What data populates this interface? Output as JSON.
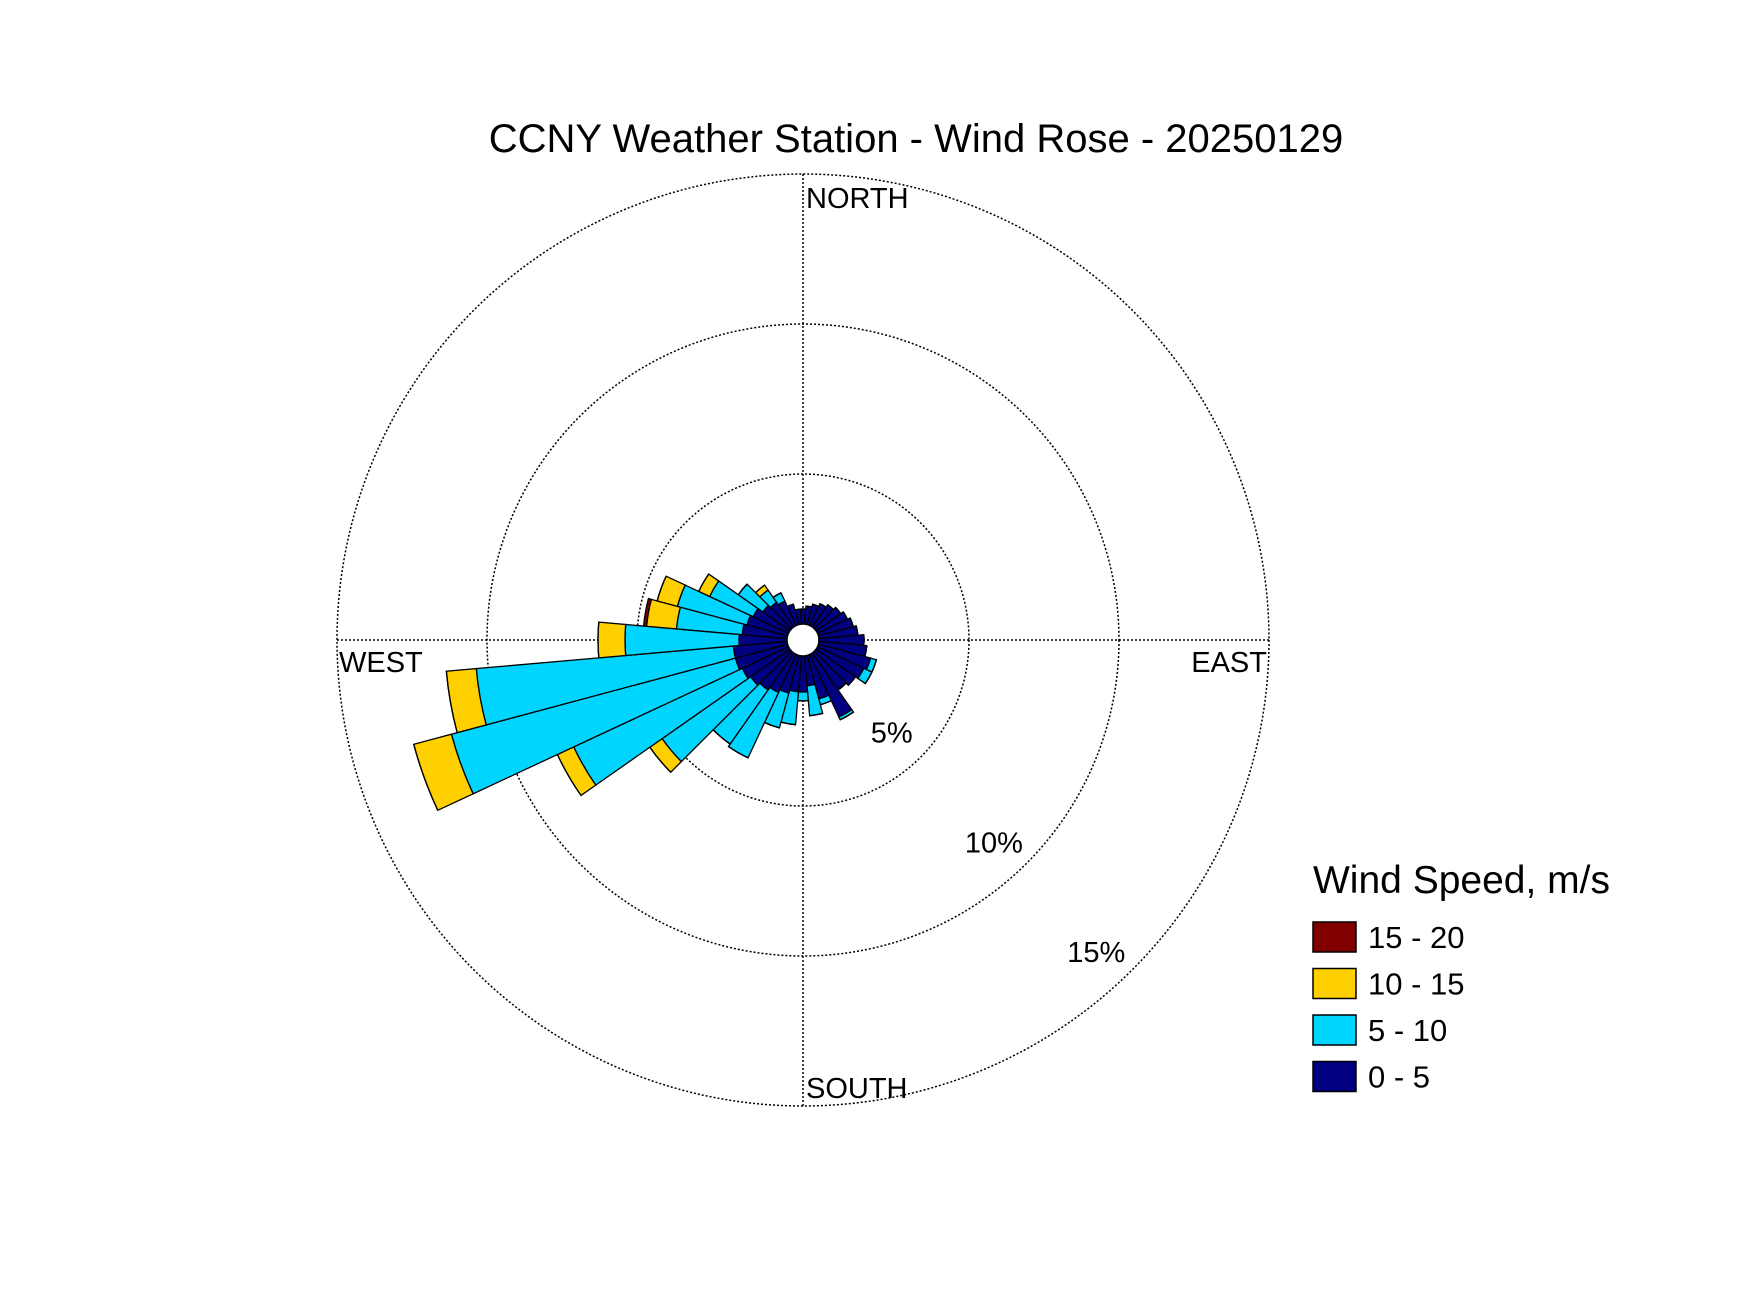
{
  "chart_data": {
    "type": "windrose",
    "title": "CCNY Weather Station - Wind Rose - 20250129",
    "x": [
      0,
      10,
      20,
      30,
      40,
      50,
      60,
      70,
      80,
      90,
      100,
      110,
      120,
      130,
      140,
      150,
      160,
      170,
      180,
      190,
      200,
      210,
      220,
      230,
      240,
      250,
      260,
      270,
      280,
      290,
      300,
      310,
      320,
      330,
      340,
      350
    ],
    "xlim": [
      0,
      360
    ],
    "xticks": [
      {
        "value": 0,
        "label": "NORTH"
      },
      {
        "value": 90,
        "label": "EAST"
      },
      {
        "value": 180,
        "label": "SOUTH"
      },
      {
        "value": 270,
        "label": "WEST"
      }
    ],
    "ylim": [
      0,
      15
    ],
    "yticks": [
      {
        "value": 5,
        "label": "5%"
      },
      {
        "value": 10,
        "label": "10%"
      },
      {
        "value": 15,
        "label": "15%"
      }
    ],
    "grid": true,
    "legend_title": "Wind Speed, m/s",
    "legend": "right",
    "series": [
      {
        "name": "0 - 5",
        "color": "#000080",
        "values": [
          0.5,
          0.6,
          0.7,
          0.8,
          0.9,
          1.0,
          1.1,
          1.2,
          1.3,
          1.5,
          1.6,
          1.8,
          1.7,
          1.6,
          1.5,
          2.3,
          1.5,
          1.0,
          1.2,
          1.2,
          1.3,
          1.4,
          1.5,
          1.6,
          1.7,
          1.8,
          1.8,
          1.6,
          1.5,
          1.4,
          1.3,
          1.1,
          1.0,
          0.9,
          0.7,
          0.5
        ]
      },
      {
        "name": "5 - 10",
        "color": "#00d5ff",
        "values": [
          0,
          0,
          0,
          0,
          0,
          0,
          0,
          0,
          0,
          0,
          0,
          0.2,
          0.3,
          0,
          0,
          0.1,
          0.2,
          1.0,
          0.3,
          1.1,
          1.2,
          2.4,
          2.2,
          3.6,
          6.2,
          9.8,
          8.6,
          3.8,
          2.2,
          2.4,
          1.6,
          1.0,
          0.5,
          0.3,
          0,
          0
        ]
      },
      {
        "name": "10 - 15",
        "color": "#ffd000",
        "values": [
          0,
          0,
          0,
          0,
          0,
          0,
          0,
          0,
          0,
          0,
          0,
          0,
          0,
          0,
          0,
          0,
          0,
          0,
          0,
          0,
          0,
          0,
          0,
          0.5,
          0.6,
          1.3,
          1.0,
          0.9,
          1.0,
          0.7,
          0.4,
          0,
          0.2,
          0,
          0,
          0
        ]
      },
      {
        "name": "15 - 20",
        "color": "#800000",
        "values": [
          0,
          0,
          0,
          0,
          0,
          0,
          0,
          0,
          0,
          0,
          0,
          0,
          0,
          0,
          0,
          0,
          0,
          0,
          0,
          0,
          0,
          0,
          0,
          0,
          0,
          0,
          0,
          0,
          0.1,
          0,
          0,
          0,
          0,
          0,
          0,
          0
        ]
      }
    ]
  }
}
